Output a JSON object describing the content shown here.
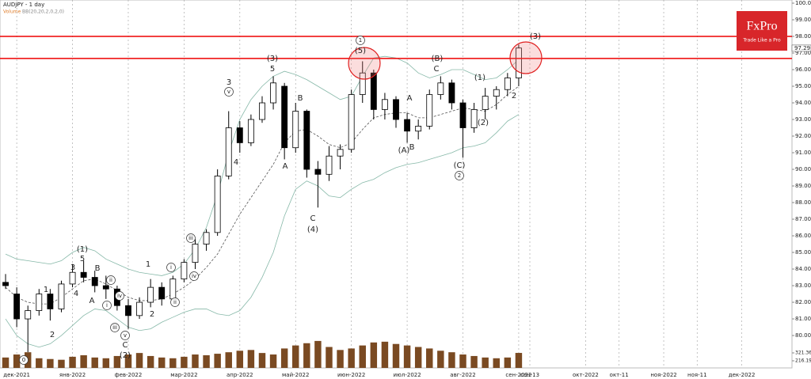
{
  "chart_data": {
    "type": "candlestick",
    "title": "AUDJPY - 1 day",
    "indicators": [
      "Volume",
      "BB(20,20,2,0,2,0)"
    ],
    "brand": "FxPro",
    "tagline": "Trade Like a Pro",
    "categories": [
      null,
      "дек-2021",
      null,
      null,
      null,
      null,
      "янв-2022",
      null,
      null,
      null,
      null,
      "фев-2022",
      null,
      null,
      null,
      null,
      "мар-2022",
      null,
      null,
      null,
      null,
      "апр-2022",
      null,
      null,
      null,
      null,
      "май-2022",
      null,
      null,
      null,
      null,
      "июн-2022",
      null,
      null,
      null,
      null,
      "июл-2022",
      null,
      null,
      null,
      null,
      "авг-2022",
      null,
      null,
      null,
      null,
      "сен-2022",
      "сен-13",
      null,
      null,
      null,
      null,
      "окт-2022",
      null,
      null,
      "окт-11",
      null,
      null,
      null,
      "ноя-2022",
      null,
      null,
      "ноя-11",
      null,
      null,
      null,
      "дек-2022",
      null,
      null,
      null,
      null
    ],
    "open": [
      83.2,
      82.5,
      81.0,
      81.5,
      82.5,
      81.6,
      83.1,
      83.8,
      83.5,
      83.0,
      82.8,
      81.8,
      81.2,
      82.0,
      82.9,
      82.2,
      83.4,
      84.4,
      85.5,
      86.2,
      89.6,
      92.5,
      91.6,
      93.0,
      94.0,
      95.0,
      91.3,
      93.5,
      90.0,
      89.7,
      90.8,
      91.2,
      94.5,
      95.8,
      93.6,
      94.2,
      93.0,
      92.3,
      92.6,
      94.5,
      95.2,
      94.0,
      92.5,
      93.6,
      94.4,
      94.8,
      95.5,
      null,
      null,
      null,
      null,
      null,
      null,
      null,
      null,
      null,
      null,
      null,
      null,
      null,
      null,
      null,
      null,
      null,
      null,
      null,
      null,
      null,
      null,
      null,
      null
    ],
    "high": [
      83.7,
      82.9,
      81.8,
      82.8,
      82.8,
      83.3,
      84.3,
      84.5,
      83.9,
      83.6,
      83.0,
      82.2,
      82.3,
      83.4,
      83.2,
      83.6,
      84.6,
      85.8,
      86.4,
      90.0,
      93.5,
      92.9,
      93.3,
      94.4,
      95.6,
      95.2,
      94.0,
      93.6,
      90.5,
      91.4,
      91.5,
      94.8,
      96.5,
      96.0,
      94.6,
      94.4,
      93.4,
      93.0,
      94.8,
      95.6,
      95.4,
      94.2,
      94.0,
      94.9,
      95.0,
      95.8,
      97.5,
      null,
      null,
      null,
      null,
      null,
      null,
      null,
      null,
      null,
      null,
      null,
      null,
      null,
      null,
      null,
      null,
      null,
      null,
      null,
      null,
      null,
      null,
      null,
      null
    ],
    "low": [
      82.8,
      80.5,
      79.0,
      81.2,
      80.9,
      81.4,
      82.9,
      83.2,
      82.6,
      82.2,
      81.5,
      80.4,
      81.0,
      81.7,
      81.8,
      82.0,
      83.2,
      84.0,
      85.1,
      86.0,
      89.4,
      91.0,
      91.4,
      92.8,
      93.6,
      90.6,
      91.0,
      89.5,
      87.7,
      89.3,
      90.0,
      91.0,
      94.0,
      93.0,
      93.0,
      92.5,
      91.6,
      91.8,
      92.4,
      94.2,
      93.6,
      90.7,
      92.2,
      93.0,
      93.6,
      94.4,
      95.0,
      null,
      null,
      null,
      null,
      null,
      null,
      null,
      null,
      null,
      null,
      null,
      null,
      null,
      null,
      null,
      null,
      null,
      null,
      null,
      null,
      null,
      null,
      null,
      null
    ],
    "close": [
      83.0,
      81.0,
      81.5,
      82.5,
      81.6,
      83.1,
      83.8,
      83.5,
      83.0,
      82.8,
      81.8,
      81.2,
      82.0,
      82.9,
      82.2,
      83.4,
      84.4,
      85.5,
      86.2,
      89.6,
      92.5,
      91.6,
      93.0,
      94.0,
      95.2,
      91.3,
      93.5,
      90.0,
      89.7,
      90.8,
      91.2,
      94.5,
      95.8,
      93.6,
      94.2,
      93.0,
      92.3,
      92.6,
      94.5,
      95.2,
      94.0,
      92.5,
      93.6,
      94.4,
      94.8,
      95.5,
      97.3,
      null,
      null,
      null,
      null,
      null,
      null,
      null,
      null,
      null,
      null,
      null,
      null,
      null,
      null,
      null,
      null,
      null,
      null,
      null,
      null,
      null,
      null,
      null,
      null
    ],
    "bands": {
      "color": "#86b8a8",
      "middle_color": "#555555",
      "upper": [
        84.9,
        84.6,
        84.5,
        84.4,
        84.3,
        84.5,
        85.0,
        85.3,
        85.1,
        84.6,
        84.3,
        84.0,
        83.8,
        83.7,
        83.6,
        83.8,
        84.3,
        85.2,
        86.5,
        88.5,
        91.0,
        93.0,
        94.2,
        95.0,
        95.6,
        95.9,
        95.7,
        95.4,
        95.0,
        94.6,
        94.2,
        94.4,
        95.6,
        96.7,
        96.8,
        96.7,
        96.4,
        95.8,
        95.5,
        95.7,
        96.0,
        96.0,
        95.7,
        95.4,
        95.5,
        96.0,
        96.6,
        null,
        null,
        null,
        null,
        null,
        null,
        null,
        null,
        null,
        null,
        null,
        null,
        null,
        null,
        null,
        null,
        null,
        null,
        null,
        null,
        null,
        null,
        null,
        null
      ],
      "middle": [
        82.9,
        82.3,
        82.0,
        81.9,
        81.9,
        82.3,
        82.8,
        83.3,
        83.4,
        83.1,
        82.7,
        82.3,
        82.1,
        82.1,
        82.2,
        82.5,
        82.9,
        83.4,
        84.1,
        84.9,
        86.1,
        87.3,
        88.3,
        89.3,
        90.3,
        91.6,
        92.3,
        92.4,
        92.0,
        91.5,
        91.3,
        91.6,
        92.4,
        93.1,
        93.3,
        93.4,
        93.4,
        93.1,
        93.1,
        93.3,
        93.5,
        93.7,
        93.6,
        93.5,
        93.9,
        94.5,
        95.0,
        null,
        null,
        null,
        null,
        null,
        null,
        null,
        null,
        null,
        null,
        null,
        null,
        null,
        null,
        null,
        null,
        null,
        null,
        null,
        null,
        null,
        null,
        null,
        null
      ],
      "lower": [
        81.0,
        80.0,
        79.5,
        79.3,
        79.5,
        80.0,
        80.6,
        81.2,
        81.6,
        81.5,
        81.0,
        80.5,
        80.3,
        80.4,
        80.8,
        81.1,
        81.4,
        81.6,
        81.6,
        81.3,
        81.2,
        81.5,
        82.3,
        83.5,
        85.0,
        87.2,
        88.8,
        89.3,
        89.0,
        88.4,
        88.3,
        88.8,
        89.2,
        89.4,
        89.8,
        90.1,
        90.3,
        90.4,
        90.6,
        90.8,
        91.0,
        91.3,
        91.4,
        91.6,
        92.2,
        92.9,
        93.3,
        null,
        null,
        null,
        null,
        null,
        null,
        null,
        null,
        null,
        null,
        null,
        null,
        null,
        null,
        null,
        null,
        null,
        null,
        null,
        null,
        null,
        null,
        null,
        null
      ]
    },
    "volume": {
      "color": "#7a4a22",
      "ylim": [
        121.6,
        594.7
      ],
      "yticks": [
        321.36,
        216.19
      ],
      "values": [
        260,
        300,
        330,
        250,
        240,
        230,
        270,
        290,
        260,
        250,
        280,
        300,
        320,
        280,
        260,
        250,
        270,
        300,
        290,
        310,
        330,
        350,
        360,
        320,
        300,
        380,
        420,
        450,
        480,
        400,
        360,
        380,
        420,
        460,
        470,
        440,
        420,
        400,
        380,
        350,
        330,
        300,
        280,
        260,
        250,
        260,
        321,
        null,
        null,
        null,
        null,
        null,
        null,
        null,
        null,
        null,
        null,
        null,
        null,
        null,
        null,
        null,
        null,
        null,
        null,
        null,
        null,
        null,
        null,
        null,
        null
      ]
    },
    "ylim": [
      78.05,
      100.19
    ],
    "yticks": [
      {
        "value": 80,
        "label": "80.00"
      },
      {
        "value": 81,
        "label": "81.00"
      },
      {
        "value": 82,
        "label": "82.00"
      },
      {
        "value": 83,
        "label": "83.00"
      },
      {
        "value": 84,
        "label": "84.00"
      },
      {
        "value": 85,
        "label": "85.00"
      },
      {
        "value": 86,
        "label": "86.00"
      },
      {
        "value": 87,
        "label": "87.00"
      },
      {
        "value": 88,
        "label": "88.00"
      },
      {
        "value": 89,
        "label": "89.00"
      },
      {
        "value": 90,
        "label": "90.00"
      },
      {
        "value": 91,
        "label": "91.00"
      },
      {
        "value": 92,
        "label": "92.00"
      },
      {
        "value": 93,
        "label": "93.00"
      },
      {
        "value": 94,
        "label": "94.00"
      },
      {
        "value": 95,
        "label": "95.00"
      },
      {
        "value": 96,
        "label": "96.00"
      },
      {
        "value": 97,
        "label": "97.00"
      },
      {
        "value": 98,
        "label": "98.00"
      },
      {
        "value": 99,
        "label": "99.00"
      },
      {
        "value": 100,
        "label": "100.00"
      }
    ],
    "levels": [
      98.0,
      96.67
    ],
    "level_color": "#ee0000",
    "current_price": {
      "value": 97.29,
      "label": "97.29"
    },
    "annotations": [
      "0",
      "1",
      "2",
      "3",
      "4",
      "(1)",
      "5",
      "A",
      "B",
      "ii",
      "i",
      "iii",
      "iv",
      "v",
      "C",
      "(2)",
      "1",
      "2",
      "i",
      "ii",
      "iii",
      "iv",
      "v",
      "3",
      "4",
      "(3)",
      "5",
      "B",
      "A",
      "C",
      "(4)",
      "1",
      "(5)",
      "A",
      "(A)",
      "B",
      "(B)",
      "C",
      "(1)",
      "(2)",
      "(C)",
      "2",
      "2",
      "(3)"
    ]
  }
}
